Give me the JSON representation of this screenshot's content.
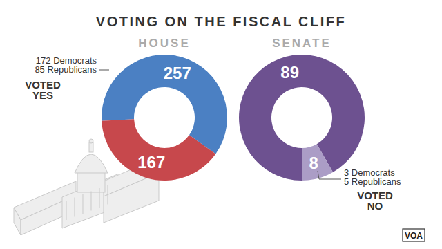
{
  "title": "VOTING ON THE FISCAL CLIFF",
  "source": "VOA",
  "chart_data": [
    {
      "type": "donut",
      "title": "HOUSE",
      "values": [
        257,
        167
      ],
      "colors": [
        "#4b80c3",
        "#c7484c"
      ],
      "data_labels": true,
      "annotation": {
        "lines": [
          "172 Democrats",
          "85 Republicans"
        ],
        "label": "VOTED YES"
      }
    },
    {
      "type": "donut",
      "title": "SENATE",
      "values": [
        89,
        8
      ],
      "colors": [
        "#6d5190",
        "#ab9dc6"
      ],
      "data_labels": true,
      "annotation": {
        "lines": [
          "3 Democrats",
          "5 Republicans"
        ],
        "label": "VOTED NO"
      }
    }
  ]
}
